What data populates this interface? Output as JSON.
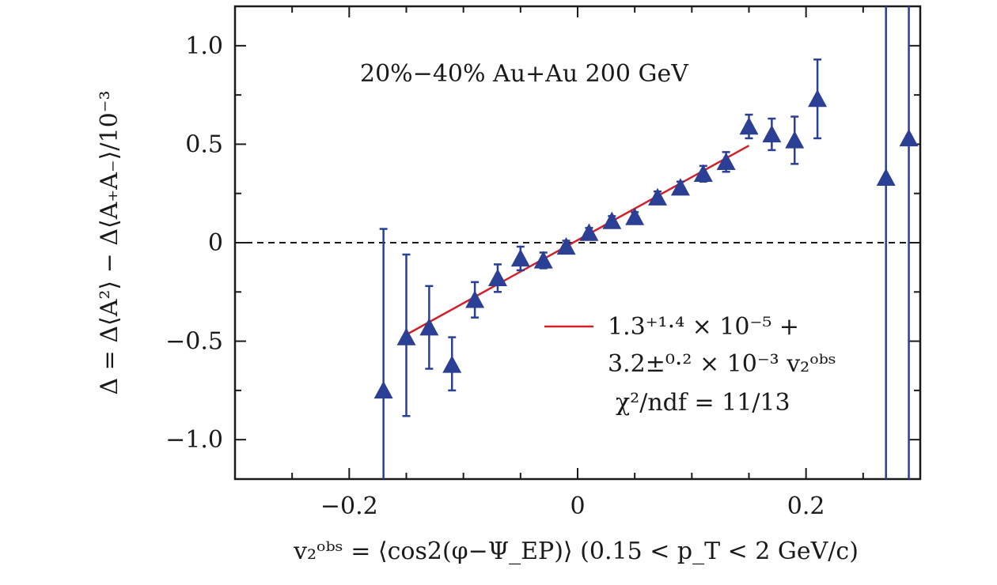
{
  "chart_data": {
    "type": "scatter",
    "title": "",
    "annotation": "20%−40% Au+Au 200 GeV",
    "xlabel": "v₂ᵒᵇˢ = ⟨cos2(φ−Ψ_EP)⟩ (0.15 < p_T < 2 GeV/c)",
    "ylabel": "Δ = Δ⟨A²⟩ − Δ⟨A₊A₋⟩/10⁻³",
    "xlim": [
      -0.3,
      0.3
    ],
    "ylim": [
      -1.2,
      1.2
    ],
    "x_ticks": [
      -0.2,
      0,
      0.2
    ],
    "x_tick_labels": [
      "−0.2",
      "0",
      "0.2"
    ],
    "y_ticks": [
      -1.0,
      -0.5,
      0,
      0.5,
      1.0
    ],
    "y_tick_labels": [
      "−1.0",
      "−0.5",
      "0",
      "0.5",
      "1.0"
    ],
    "zero_line": true,
    "series": [
      {
        "name": "data",
        "marker": "triangle",
        "color": "#2b3f95",
        "points": [
          {
            "x": -0.17,
            "y": -0.75,
            "err_lo": 0.8,
            "err_hi": 0.82
          },
          {
            "x": -0.15,
            "y": -0.48,
            "err_lo": 0.4,
            "err_hi": 0.42
          },
          {
            "x": -0.13,
            "y": -0.43,
            "err_lo": 0.21,
            "err_hi": 0.21
          },
          {
            "x": -0.11,
            "y": -0.62,
            "err_lo": 0.13,
            "err_hi": 0.14
          },
          {
            "x": -0.09,
            "y": -0.29,
            "err_lo": 0.09,
            "err_hi": 0.09
          },
          {
            "x": -0.07,
            "y": -0.18,
            "err_lo": 0.07,
            "err_hi": 0.07
          },
          {
            "x": -0.05,
            "y": -0.08,
            "err_lo": 0.06,
            "err_hi": 0.06
          },
          {
            "x": -0.03,
            "y": -0.09,
            "err_lo": 0.04,
            "err_hi": 0.04
          },
          {
            "x": -0.01,
            "y": -0.02,
            "err_lo": 0.03,
            "err_hi": 0.03
          },
          {
            "x": 0.01,
            "y": 0.05,
            "err_lo": 0.025,
            "err_hi": 0.025
          },
          {
            "x": 0.03,
            "y": 0.11,
            "err_lo": 0.025,
            "err_hi": 0.025
          },
          {
            "x": 0.05,
            "y": 0.13,
            "err_lo": 0.025,
            "err_hi": 0.025
          },
          {
            "x": 0.07,
            "y": 0.23,
            "err_lo": 0.03,
            "err_hi": 0.03
          },
          {
            "x": 0.09,
            "y": 0.28,
            "err_lo": 0.03,
            "err_hi": 0.03
          },
          {
            "x": 0.11,
            "y": 0.35,
            "err_lo": 0.04,
            "err_hi": 0.04
          },
          {
            "x": 0.13,
            "y": 0.41,
            "err_lo": 0.05,
            "err_hi": 0.05
          },
          {
            "x": 0.15,
            "y": 0.59,
            "err_lo": 0.06,
            "err_hi": 0.06
          },
          {
            "x": 0.17,
            "y": 0.55,
            "err_lo": 0.08,
            "err_hi": 0.08
          },
          {
            "x": 0.19,
            "y": 0.52,
            "err_lo": 0.12,
            "err_hi": 0.12
          },
          {
            "x": 0.21,
            "y": 0.73,
            "err_lo": 0.2,
            "err_hi": 0.2
          },
          {
            "x": 0.27,
            "y": 0.33,
            "err_lo": 2.0,
            "err_hi": 2.0
          },
          {
            "x": 0.29,
            "y": 0.53,
            "err_lo": 2.0,
            "err_hi": 2.0
          }
        ]
      }
    ],
    "fit": {
      "color": "#d0202a",
      "intercept": 0.013,
      "slope": 3.2,
      "x_range": [
        -0.15,
        0.15
      ],
      "legend_lines": [
        "1.3⁺¹·⁴ × 10⁻⁵ +",
        "3.2±⁰·² × 10⁻³ v₂ᵒᵇˢ",
        "χ²/ndf = 11/13"
      ]
    }
  }
}
